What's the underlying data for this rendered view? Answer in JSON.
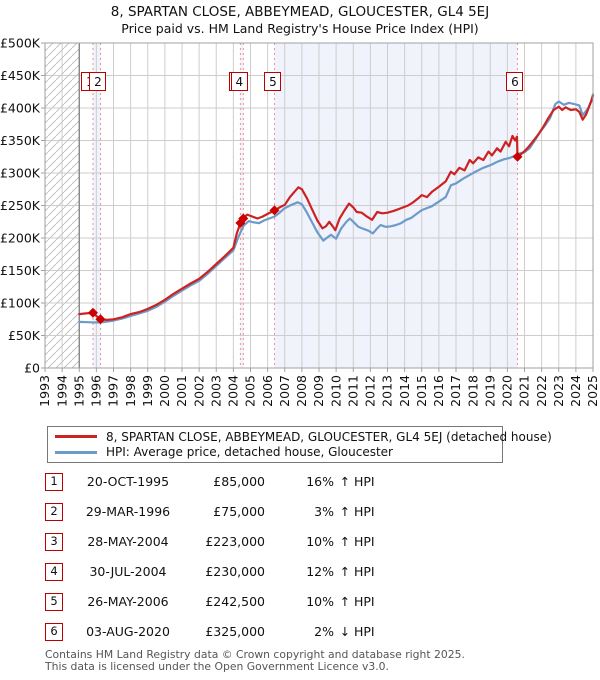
{
  "title": "8, SPARTAN CLOSE, ABBEYMEAD, GLOUCESTER, GL4 5EJ",
  "subtitle": "Price paid vs. HM Land Registry's House Price Index (HPI)",
  "legend": {
    "entries": [
      {
        "label": "8, SPARTAN CLOSE, ABBEYMEAD, GLOUCESTER, GL4 5EJ (detached house)",
        "color": "#cc2222"
      },
      {
        "label": "HPI: Average price, detached house, Gloucester",
        "color": "#6d9bc9"
      }
    ]
  },
  "chart_data": {
    "type": "line",
    "title": "Price paid vs. HM Land Registry's House Price Index (HPI)",
    "xlabel": "",
    "ylabel": "",
    "xlim": [
      1993,
      2025
    ],
    "ylim": [
      0,
      500000
    ],
    "grid": true,
    "x_tick_labels": [
      "1993",
      "1994",
      "1995",
      "1996",
      "1997",
      "1998",
      "1999",
      "2000",
      "2001",
      "2002",
      "2003",
      "2004",
      "2005",
      "2006",
      "2007",
      "2008",
      "2009",
      "2010",
      "2011",
      "2012",
      "2013",
      "2014",
      "2015",
      "2016",
      "2017",
      "2018",
      "2019",
      "2020",
      "2021",
      "2022",
      "2023",
      "2024",
      "2025"
    ],
    "y_tick_labels": [
      "£500K",
      "£450K",
      "£400K",
      "£350K",
      "£300K",
      "£250K",
      "£200K",
      "£150K",
      "£100K",
      "£50K",
      "£0"
    ],
    "hatch_region": [
      1993,
      1995
    ],
    "ownership_bands": [
      [
        1995.8,
        1996.24
      ],
      [
        2004.41,
        2004.58
      ],
      [
        2006.4,
        2020.59
      ]
    ],
    "colors": {
      "band": "#f0f3fb",
      "grid": "#cdcdcd",
      "border": "#a0a0a0",
      "hatch": "#c4c4c4",
      "data_start_line": "#808080",
      "sale_line": "#f09090",
      "marker": "#cc0000",
      "tick": "#a0a0a0"
    },
    "series": [
      {
        "name": "HPI: Average price, detached house, Gloucester",
        "color": "#6d9bc9",
        "width": 2.2,
        "points_year_gbpk": [
          [
            1995.0,
            71
          ],
          [
            1995.5,
            70.5
          ],
          [
            1996.0,
            70
          ],
          [
            1996.5,
            71
          ],
          [
            1997.0,
            73
          ],
          [
            1997.5,
            76
          ],
          [
            1998.0,
            80
          ],
          [
            1998.5,
            84
          ],
          [
            1999.0,
            88
          ],
          [
            1999.5,
            94
          ],
          [
            2000.0,
            102
          ],
          [
            2000.5,
            111
          ],
          [
            2001.0,
            119
          ],
          [
            2001.5,
            127
          ],
          [
            2002.0,
            134
          ],
          [
            2002.5,
            145
          ],
          [
            2003.0,
            157
          ],
          [
            2003.5,
            169
          ],
          [
            2004.0,
            181
          ],
          [
            2004.3,
            202
          ],
          [
            2004.6,
            219
          ],
          [
            2004.9,
            226
          ],
          [
            2005.2,
            224
          ],
          [
            2005.5,
            223
          ],
          [
            2005.8,
            227
          ],
          [
            2006.1,
            230
          ],
          [
            2006.4,
            233
          ],
          [
            2006.7,
            239
          ],
          [
            2007.0,
            246
          ],
          [
            2007.4,
            251
          ],
          [
            2007.75,
            255
          ],
          [
            2008.0,
            252
          ],
          [
            2008.3,
            239
          ],
          [
            2008.6,
            224
          ],
          [
            2008.9,
            209
          ],
          [
            2009.25,
            196
          ],
          [
            2009.5,
            201
          ],
          [
            2009.7,
            205
          ],
          [
            2010.0,
            199
          ],
          [
            2010.3,
            215
          ],
          [
            2010.6,
            225
          ],
          [
            2010.8,
            230
          ],
          [
            2011.0,
            225
          ],
          [
            2011.3,
            217
          ],
          [
            2011.6,
            214
          ],
          [
            2011.9,
            211
          ],
          [
            2012.15,
            207
          ],
          [
            2012.4,
            215
          ],
          [
            2012.6,
            220
          ],
          [
            2012.9,
            217
          ],
          [
            2013.2,
            218
          ],
          [
            2013.5,
            220
          ],
          [
            2013.8,
            223
          ],
          [
            2014.1,
            228
          ],
          [
            2014.4,
            231
          ],
          [
            2014.7,
            237
          ],
          [
            2015.0,
            243
          ],
          [
            2015.3,
            246
          ],
          [
            2015.6,
            249
          ],
          [
            2016.0,
            256
          ],
          [
            2016.4,
            263
          ],
          [
            2016.7,
            281
          ],
          [
            2017.0,
            284
          ],
          [
            2017.4,
            291
          ],
          [
            2017.8,
            297
          ],
          [
            2018.2,
            303
          ],
          [
            2018.6,
            308
          ],
          [
            2019.0,
            312
          ],
          [
            2019.4,
            317
          ],
          [
            2019.8,
            321
          ],
          [
            2020.1,
            323
          ],
          [
            2020.4,
            326
          ],
          [
            2020.7,
            330
          ],
          [
            2021.0,
            332
          ],
          [
            2021.3,
            338
          ],
          [
            2021.6,
            350
          ],
          [
            2021.9,
            363
          ],
          [
            2022.2,
            373
          ],
          [
            2022.5,
            385
          ],
          [
            2022.8,
            406
          ],
          [
            2023.0,
            410
          ],
          [
            2023.3,
            405
          ],
          [
            2023.6,
            408
          ],
          [
            2023.9,
            406
          ],
          [
            2024.2,
            404
          ],
          [
            2024.4,
            389
          ],
          [
            2024.7,
            399
          ],
          [
            2024.9,
            410
          ],
          [
            2025.0,
            421
          ]
        ]
      },
      {
        "name": "8, SPARTAN CLOSE, ABBEYMEAD, GLOUCESTER, GL4 5EJ (detached house)",
        "color": "#cc2222",
        "width": 2.2,
        "points_year_gbpk": [
          [
            1995.0,
            83
          ],
          [
            1995.4,
            84
          ],
          [
            1995.8,
            85
          ],
          [
            1996.0,
            80
          ],
          [
            1996.24,
            75
          ],
          [
            1996.6,
            74
          ],
          [
            1997.0,
            75
          ],
          [
            1997.5,
            78
          ],
          [
            1998.0,
            83
          ],
          [
            1998.5,
            86
          ],
          [
            1999.0,
            91
          ],
          [
            1999.5,
            97
          ],
          [
            2000.0,
            105
          ],
          [
            2000.5,
            114
          ],
          [
            2001.0,
            122
          ],
          [
            2001.5,
            130
          ],
          [
            2002.0,
            137
          ],
          [
            2002.5,
            148
          ],
          [
            2003.0,
            160
          ],
          [
            2003.5,
            172
          ],
          [
            2004.0,
            185
          ],
          [
            2004.2,
            207
          ],
          [
            2004.41,
            223
          ],
          [
            2004.58,
            230
          ],
          [
            2004.8,
            236
          ],
          [
            2005.0,
            234
          ],
          [
            2005.4,
            230
          ],
          [
            2005.7,
            233
          ],
          [
            2006.0,
            237
          ],
          [
            2006.4,
            242.5
          ],
          [
            2006.7,
            247
          ],
          [
            2007.0,
            251
          ],
          [
            2007.3,
            263
          ],
          [
            2007.6,
            272
          ],
          [
            2007.8,
            278
          ],
          [
            2008.0,
            275
          ],
          [
            2008.3,
            261
          ],
          [
            2008.6,
            244
          ],
          [
            2008.9,
            227
          ],
          [
            2009.2,
            215
          ],
          [
            2009.4,
            218
          ],
          [
            2009.6,
            225
          ],
          [
            2009.8,
            218
          ],
          [
            2009.95,
            212
          ],
          [
            2010.2,
            230
          ],
          [
            2010.5,
            243
          ],
          [
            2010.75,
            253
          ],
          [
            2011.0,
            247
          ],
          [
            2011.2,
            240
          ],
          [
            2011.5,
            239
          ],
          [
            2011.8,
            233
          ],
          [
            2012.1,
            228
          ],
          [
            2012.4,
            240
          ],
          [
            2012.7,
            238
          ],
          [
            2013.0,
            239
          ],
          [
            2013.4,
            242
          ],
          [
            2013.8,
            246
          ],
          [
            2014.2,
            250
          ],
          [
            2014.5,
            255
          ],
          [
            2014.8,
            261
          ],
          [
            2015.0,
            266
          ],
          [
            2015.3,
            263
          ],
          [
            2015.6,
            271
          ],
          [
            2016.0,
            279
          ],
          [
            2016.4,
            287
          ],
          [
            2016.7,
            302
          ],
          [
            2016.9,
            298
          ],
          [
            2017.2,
            308
          ],
          [
            2017.5,
            304
          ],
          [
            2017.8,
            320
          ],
          [
            2018.0,
            315
          ],
          [
            2018.3,
            324
          ],
          [
            2018.6,
            320
          ],
          [
            2018.9,
            333
          ],
          [
            2019.1,
            327
          ],
          [
            2019.4,
            338
          ],
          [
            2019.6,
            333
          ],
          [
            2019.9,
            348
          ],
          [
            2020.1,
            341
          ],
          [
            2020.3,
            357
          ],
          [
            2020.45,
            350
          ],
          [
            2020.56,
            356
          ],
          [
            2020.59,
            325
          ],
          [
            2020.9,
            331
          ],
          [
            2021.2,
            339
          ],
          [
            2021.5,
            349
          ],
          [
            2021.8,
            359
          ],
          [
            2022.1,
            371
          ],
          [
            2022.4,
            385
          ],
          [
            2022.7,
            397
          ],
          [
            2023.0,
            402
          ],
          [
            2023.2,
            397
          ],
          [
            2023.4,
            401
          ],
          [
            2023.7,
            397
          ],
          [
            2024.0,
            398
          ],
          [
            2024.2,
            394
          ],
          [
            2024.4,
            382
          ],
          [
            2024.6,
            390
          ],
          [
            2024.8,
            404
          ],
          [
            2025.0,
            419
          ]
        ]
      }
    ],
    "sales": [
      {
        "num": "1",
        "year": 1995.8,
        "price_gbpk": 85,
        "box_dx": -3
      },
      {
        "num": "2",
        "year": 1996.24,
        "price_gbpk": 75,
        "box_dx": -2.5
      },
      {
        "num": "3",
        "year": 2004.41,
        "price_gbpk": 223,
        "box_dx": -3
      },
      {
        "num": "4",
        "year": 2004.58,
        "price_gbpk": 230,
        "box_dx": -4
      },
      {
        "num": "5",
        "year": 2006.4,
        "price_gbpk": 242.5,
        "box_dx": -1.5
      },
      {
        "num": "6",
        "year": 2020.59,
        "price_gbpk": 325,
        "box_dx": -2.5
      }
    ]
  },
  "table": {
    "rows": [
      {
        "num": "1",
        "date": "20-OCT-1995",
        "price": "£85,000",
        "pct": "16%",
        "arrow": "↑",
        "hpi": "HPI"
      },
      {
        "num": "2",
        "date": "29-MAR-1996",
        "price": "£75,000",
        "pct": "3%",
        "arrow": "↑",
        "hpi": "HPI"
      },
      {
        "num": "3",
        "date": "28-MAY-2004",
        "price": "£223,000",
        "pct": "10%",
        "arrow": "↑",
        "hpi": "HPI"
      },
      {
        "num": "4",
        "date": "30-JUL-2004",
        "price": "£230,000",
        "pct": "12%",
        "arrow": "↑",
        "hpi": "HPI"
      },
      {
        "num": "5",
        "date": "26-MAY-2006",
        "price": "£242,500",
        "pct": "10%",
        "arrow": "↑",
        "hpi": "HPI"
      },
      {
        "num": "6",
        "date": "03-AUG-2020",
        "price": "£325,000",
        "pct": "2%",
        "arrow": "↓",
        "hpi": "HPI"
      }
    ]
  },
  "footer": {
    "line1": "Contains HM Land Registry data © Crown copyright and database right 2025.",
    "line2": "This data is licensed under the Open Government Licence v3.0."
  }
}
